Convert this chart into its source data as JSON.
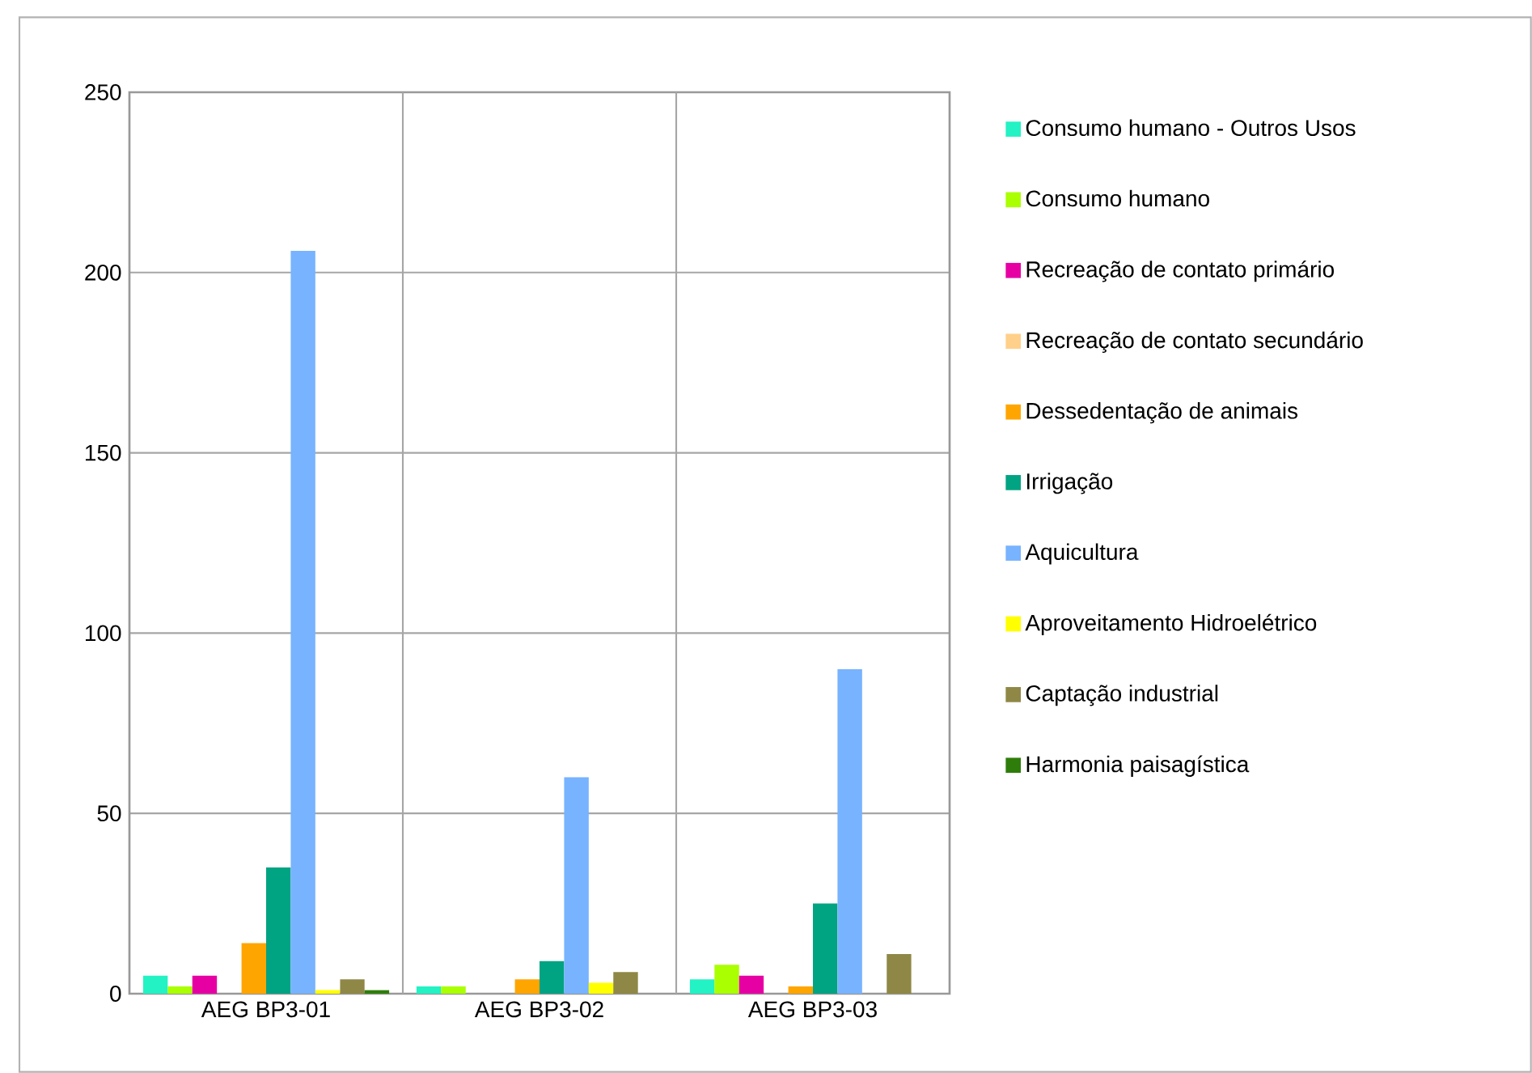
{
  "chart_data": {
    "type": "bar",
    "categories": [
      "AEG BP3-01",
      "AEG BP3-02",
      "AEG BP3-03"
    ],
    "series": [
      {
        "name": "Consumo humano - Outros Usos",
        "color": "#22f2c4",
        "values": [
          5,
          2,
          4
        ]
      },
      {
        "name": "Consumo humano",
        "color": "#aaff00",
        "values": [
          2,
          2,
          8
        ]
      },
      {
        "name": "Recreação de contato primário",
        "color": "#e600a4",
        "values": [
          5,
          0,
          5
        ]
      },
      {
        "name": "Recreação de contato secundário",
        "color": "#ffd08a",
        "values": [
          0,
          0,
          0
        ]
      },
      {
        "name": "Dessedentação de animais",
        "color": "#ffa500",
        "values": [
          14,
          4,
          2
        ]
      },
      {
        "name": "Irrigação",
        "color": "#00a382",
        "values": [
          35,
          9,
          25
        ]
      },
      {
        "name": "Aquicultura",
        "color": "#77b3ff",
        "values": [
          206,
          60,
          90
        ]
      },
      {
        "name": "Aproveitamento Hidroelétrico",
        "color": "#ffff00",
        "values": [
          1,
          3,
          0
        ]
      },
      {
        "name": "Captação industrial",
        "color": "#8f8745",
        "values": [
          4,
          6,
          11
        ]
      },
      {
        "name": "Harmonia paisagística",
        "color": "#2e7d0a",
        "values": [
          1,
          0,
          0
        ]
      }
    ],
    "ylim": [
      0,
      250
    ],
    "yticks": [
      0,
      50,
      100,
      150,
      200,
      250
    ],
    "grid": true,
    "legend": "right"
  }
}
